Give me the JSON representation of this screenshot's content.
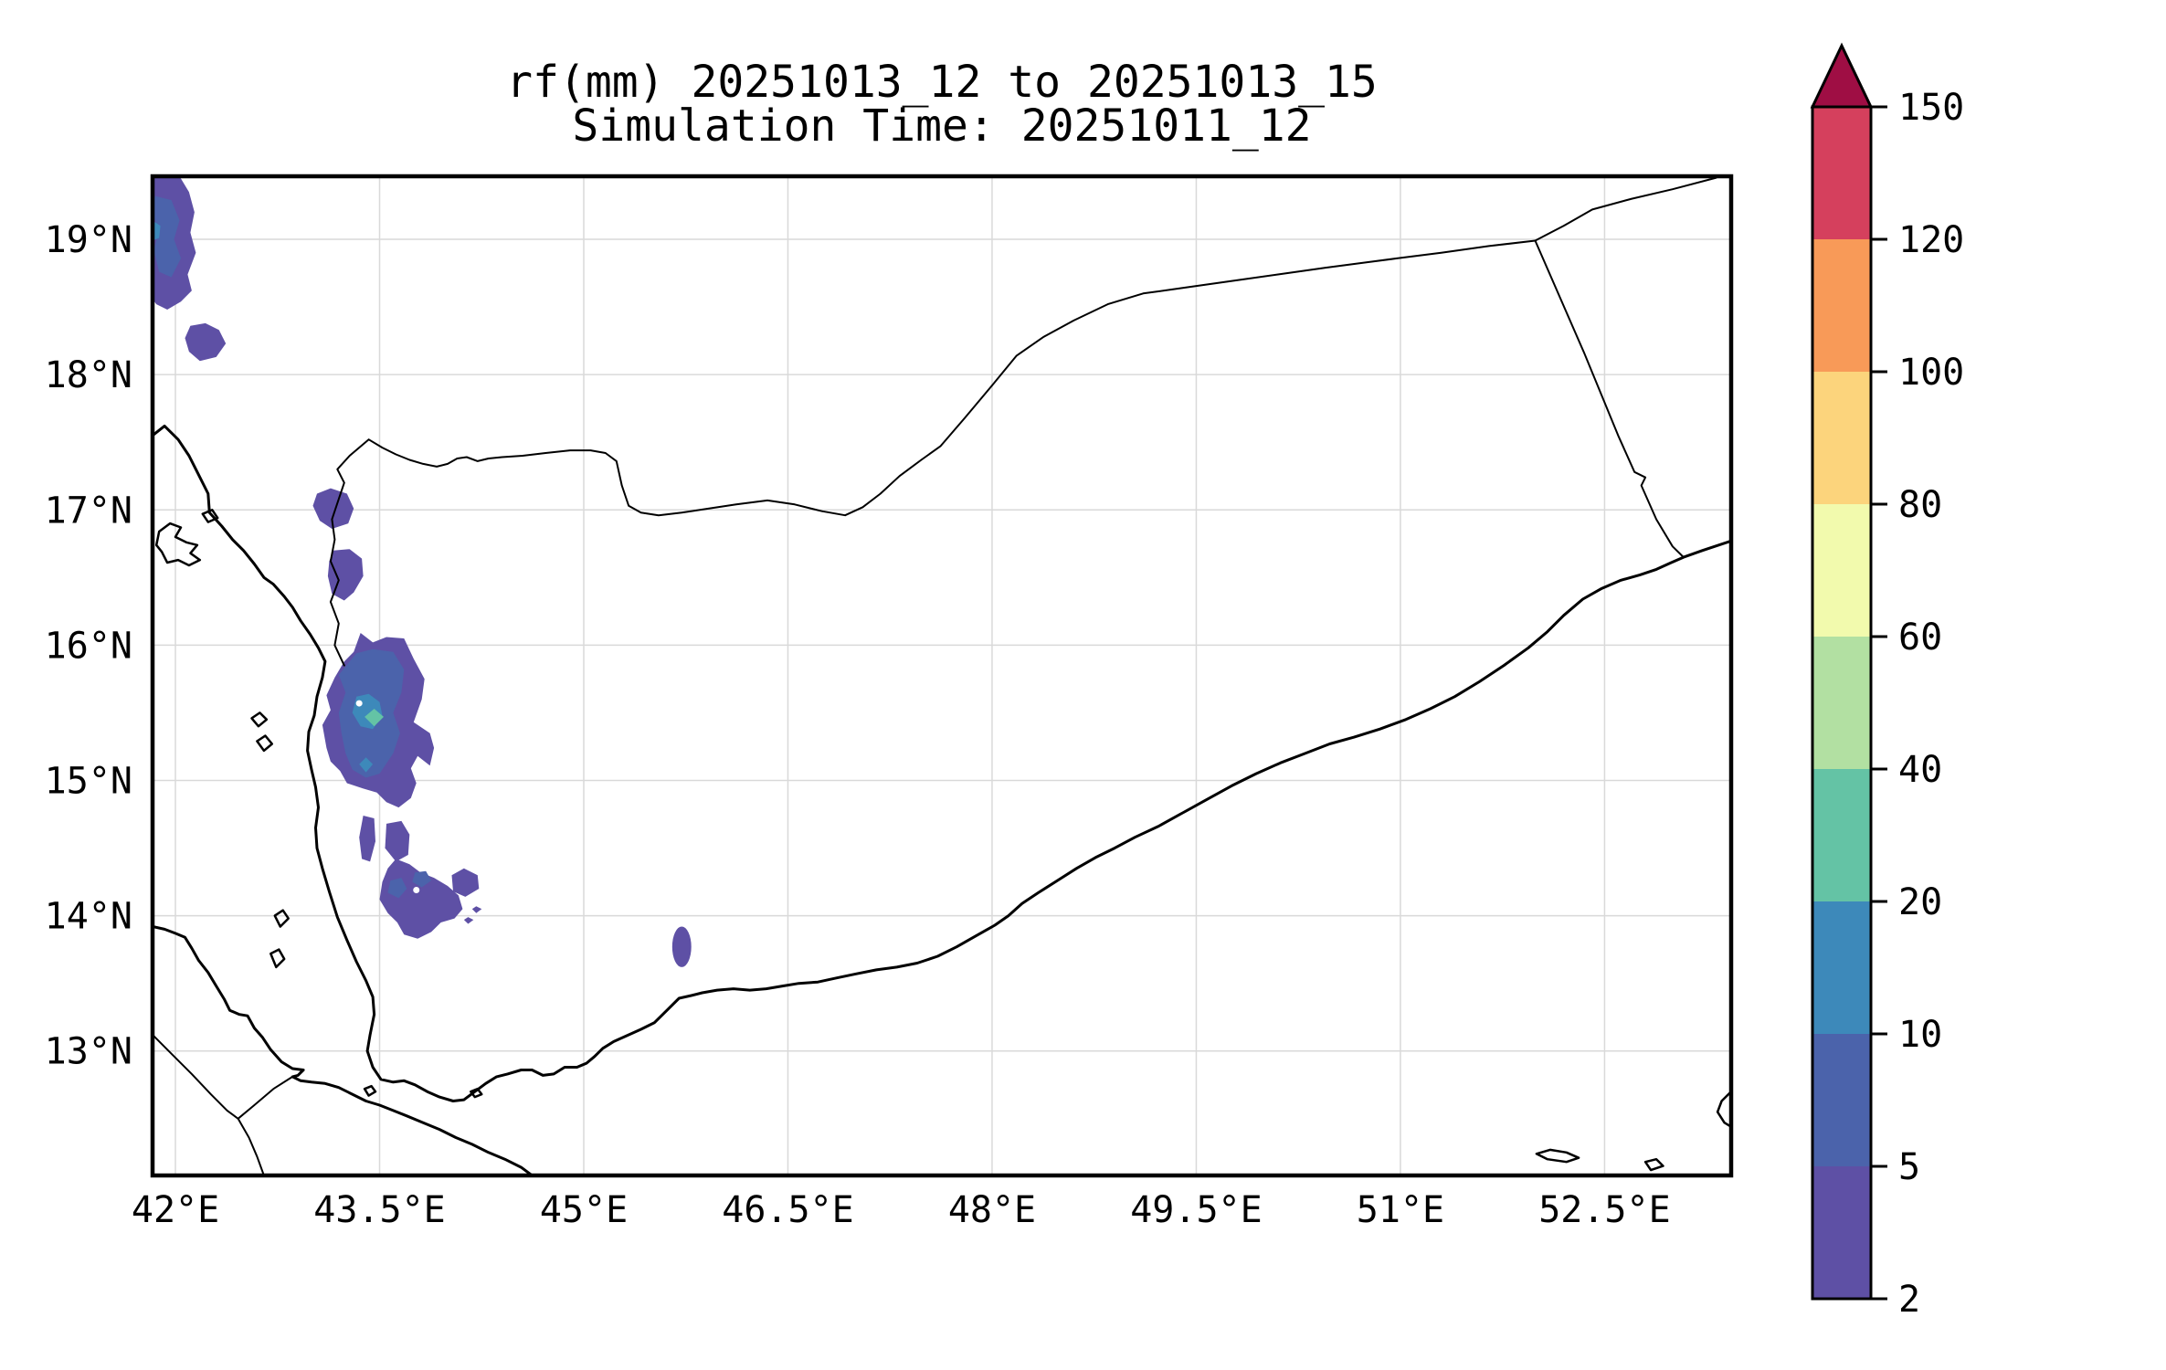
{
  "title": {
    "line1": "rf(mm) 20251013_12 to 20251013_15",
    "line2": "Simulation Time: 20251011_12"
  },
  "chart_data": {
    "type": "heatmap",
    "subtype": "filled-contour-precipitation-map",
    "variable": "rf(mm)",
    "accumulation_period": "20251013_12 to 20251013_15",
    "simulation_time": "20251011_12",
    "region": "Yemen / southern Arabian Peninsula",
    "grid": true,
    "map_extent": {
      "lon_min": 41.832,
      "lon_max": 53.43,
      "lat_min": 12.08,
      "lat_max": 19.466
    },
    "x_ticks": [
      {
        "lon": 42.0,
        "label": "42°E"
      },
      {
        "lon": 43.5,
        "label": "43.5°E"
      },
      {
        "lon": 45.0,
        "label": "45°E"
      },
      {
        "lon": 46.5,
        "label": "46.5°E"
      },
      {
        "lon": 48.0,
        "label": "48°E"
      },
      {
        "lon": 49.5,
        "label": "49.5°E"
      },
      {
        "lon": 51.0,
        "label": "51°E"
      },
      {
        "lon": 52.5,
        "label": "52.5°E"
      }
    ],
    "y_ticks": [
      {
        "lat": 19.0,
        "label": "19°N"
      },
      {
        "lat": 18.0,
        "label": "18°N"
      },
      {
        "lat": 17.0,
        "label": "17°N"
      },
      {
        "lat": 16.0,
        "label": "16°N"
      },
      {
        "lat": 15.0,
        "label": "15°N"
      },
      {
        "lat": 14.0,
        "label": "14°N"
      },
      {
        "lat": 13.0,
        "label": "13°N"
      }
    ],
    "colorbar": {
      "position": "right",
      "levels": [
        2,
        5,
        10,
        20,
        40,
        60,
        80,
        100,
        120,
        150
      ],
      "tick_labels": [
        "2",
        "5",
        "10",
        "20",
        "40",
        "60",
        "80",
        "100",
        "120",
        "150"
      ],
      "segment_colors": [
        "#5e50a5",
        "#4b63ab",
        "#3d89ba",
        "#64c3a5",
        "#b2e0a2",
        "#f2faad",
        "#fcd47c",
        "#f89a58",
        "#d5405d"
      ],
      "over_arrow_color": "#9f0e44",
      "extend": "max"
    },
    "level_colors": {
      "2-5": "#5e50a5",
      "5-10": "#4b63ab",
      "10-20": "#3d89ba",
      "20-40": "#64c3a5"
    },
    "rain_cells": [
      {
        "name": "nw-corner-outer",
        "level": "2-5",
        "color_index": 0,
        "polygon": [
          [
            41.83,
            19.466
          ],
          [
            42.03,
            19.466
          ],
          [
            42.1,
            19.35
          ],
          [
            42.14,
            19.2
          ],
          [
            42.11,
            19.05
          ],
          [
            42.15,
            18.9
          ],
          [
            42.09,
            18.74
          ],
          [
            42.12,
            18.62
          ],
          [
            42.04,
            18.54
          ],
          [
            41.94,
            18.48
          ],
          [
            41.86,
            18.52
          ],
          [
            41.83,
            18.56
          ]
        ]
      },
      {
        "name": "nw-corner-inner",
        "level": "5-10",
        "color_index": 1,
        "polygon": [
          [
            41.85,
            19.32
          ],
          [
            41.97,
            19.29
          ],
          [
            42.03,
            19.14
          ],
          [
            41.99,
            19.0
          ],
          [
            42.04,
            18.86
          ],
          [
            41.97,
            18.72
          ],
          [
            41.88,
            18.76
          ],
          [
            41.84,
            18.92
          ],
          [
            41.88,
            19.06
          ],
          [
            41.83,
            19.2
          ]
        ]
      },
      {
        "name": "nw-corner-teal-spot",
        "level": "10-20",
        "color_index": 2,
        "polygon": [
          [
            41.83,
            19.14
          ],
          [
            41.89,
            19.1
          ],
          [
            41.88,
            19.01
          ],
          [
            41.83,
            18.99
          ]
        ]
      },
      {
        "name": "blob-18n",
        "level": "2-5",
        "color_index": 0,
        "polygon": [
          [
            42.11,
            18.36
          ],
          [
            42.22,
            18.38
          ],
          [
            42.32,
            18.33
          ],
          [
            42.37,
            18.23
          ],
          [
            42.3,
            18.13
          ],
          [
            42.18,
            18.1
          ],
          [
            42.1,
            18.17
          ],
          [
            42.07,
            18.27
          ]
        ]
      },
      {
        "name": "blob-17n",
        "level": "2-5",
        "color_index": 0,
        "polygon": [
          [
            43.04,
            17.12
          ],
          [
            43.14,
            17.16
          ],
          [
            43.26,
            17.12
          ],
          [
            43.31,
            17.01
          ],
          [
            43.27,
            16.9
          ],
          [
            43.15,
            16.86
          ],
          [
            43.06,
            16.92
          ],
          [
            43.01,
            17.03
          ]
        ]
      },
      {
        "name": "blob-16-5n",
        "level": "2-5",
        "color_index": 0,
        "polygon": [
          [
            43.16,
            16.7
          ],
          [
            43.28,
            16.71
          ],
          [
            43.37,
            16.64
          ],
          [
            43.38,
            16.51
          ],
          [
            43.31,
            16.39
          ],
          [
            43.24,
            16.33
          ],
          [
            43.15,
            16.38
          ],
          [
            43.12,
            16.51
          ],
          [
            43.13,
            16.62
          ]
        ]
      },
      {
        "name": "main-cluster-outer",
        "level": "2-5",
        "color_index": 0,
        "polygon": [
          [
            43.36,
            16.09
          ],
          [
            43.45,
            16.02
          ],
          [
            43.55,
            16.06
          ],
          [
            43.68,
            16.05
          ],
          [
            43.75,
            15.9
          ],
          [
            43.83,
            15.75
          ],
          [
            43.81,
            15.6
          ],
          [
            43.75,
            15.43
          ],
          [
            43.87,
            15.35
          ],
          [
            43.9,
            15.24
          ],
          [
            43.87,
            15.11
          ],
          [
            43.78,
            15.18
          ],
          [
            43.73,
            15.09
          ],
          [
            43.77,
            14.98
          ],
          [
            43.73,
            14.87
          ],
          [
            43.64,
            14.8
          ],
          [
            43.55,
            14.84
          ],
          [
            43.48,
            14.91
          ],
          [
            43.38,
            14.94
          ],
          [
            43.26,
            14.98
          ],
          [
            43.21,
            15.07
          ],
          [
            43.14,
            15.14
          ],
          [
            43.11,
            15.24
          ],
          [
            43.08,
            15.41
          ],
          [
            43.14,
            15.52
          ],
          [
            43.11,
            15.63
          ],
          [
            43.17,
            15.76
          ],
          [
            43.24,
            15.88
          ],
          [
            43.31,
            15.95
          ]
        ]
      },
      {
        "name": "main-cluster-inner",
        "level": "5-10",
        "color_index": 1,
        "polygon": [
          [
            43.33,
            15.94
          ],
          [
            43.45,
            15.97
          ],
          [
            43.6,
            15.95
          ],
          [
            43.68,
            15.82
          ],
          [
            43.66,
            15.65
          ],
          [
            43.6,
            15.5
          ],
          [
            43.65,
            15.35
          ],
          [
            43.6,
            15.2
          ],
          [
            43.5,
            15.05
          ],
          [
            43.4,
            15.02
          ],
          [
            43.3,
            15.08
          ],
          [
            43.25,
            15.2
          ],
          [
            43.22,
            15.35
          ],
          [
            43.2,
            15.5
          ],
          [
            43.25,
            15.65
          ],
          [
            43.2,
            15.78
          ],
          [
            43.28,
            15.88
          ]
        ]
      },
      {
        "name": "main-cluster-teal",
        "level": "10-20",
        "color_index": 2,
        "polygon": [
          [
            43.33,
            15.62
          ],
          [
            43.42,
            15.64
          ],
          [
            43.5,
            15.58
          ],
          [
            43.52,
            15.48
          ],
          [
            43.45,
            15.38
          ],
          [
            43.36,
            15.4
          ],
          [
            43.3,
            15.5
          ]
        ]
      },
      {
        "name": "main-cluster-green-core",
        "level": "20-40",
        "color_index": 3,
        "polygon": [
          [
            43.46,
            15.53
          ],
          [
            43.53,
            15.47
          ],
          [
            43.46,
            15.4
          ],
          [
            43.39,
            15.47
          ]
        ]
      },
      {
        "name": "teal-diamond-south",
        "level": "10-20",
        "color_index": 2,
        "polygon": [
          [
            43.4,
            15.17
          ],
          [
            43.45,
            15.12
          ],
          [
            43.4,
            15.06
          ],
          [
            43.35,
            15.12
          ]
        ]
      },
      {
        "name": "mid-blob-west",
        "level": "2-5",
        "color_index": 0,
        "polygon": [
          [
            43.38,
            14.74
          ],
          [
            43.46,
            14.72
          ],
          [
            43.47,
            14.55
          ],
          [
            43.43,
            14.4
          ],
          [
            43.37,
            14.42
          ],
          [
            43.35,
            14.58
          ]
        ]
      },
      {
        "name": "mid-blob-east",
        "level": "2-5",
        "color_index": 0,
        "polygon": [
          [
            43.55,
            14.68
          ],
          [
            43.66,
            14.7
          ],
          [
            43.72,
            14.6
          ],
          [
            43.71,
            14.45
          ],
          [
            43.62,
            14.4
          ],
          [
            43.54,
            14.5
          ]
        ]
      },
      {
        "name": "lower-cluster-outer",
        "level": "2-5",
        "color_index": 0,
        "polygon": [
          [
            43.62,
            14.42
          ],
          [
            43.72,
            14.38
          ],
          [
            43.8,
            14.32
          ],
          [
            43.9,
            14.28
          ],
          [
            44.0,
            14.22
          ],
          [
            44.08,
            14.15
          ],
          [
            44.11,
            14.05
          ],
          [
            44.05,
            13.98
          ],
          [
            43.95,
            13.95
          ],
          [
            43.88,
            13.88
          ],
          [
            43.78,
            13.83
          ],
          [
            43.68,
            13.86
          ],
          [
            43.63,
            13.95
          ],
          [
            43.56,
            14.02
          ],
          [
            43.5,
            14.12
          ],
          [
            43.52,
            14.25
          ],
          [
            43.56,
            14.35
          ]
        ]
      },
      {
        "name": "lower-cluster-inner-west",
        "level": "5-10",
        "color_index": 1,
        "polygon": [
          [
            43.58,
            14.26
          ],
          [
            43.66,
            14.28
          ],
          [
            43.7,
            14.2
          ],
          [
            43.64,
            14.13
          ],
          [
            43.56,
            14.17
          ]
        ]
      },
      {
        "name": "lower-cluster-inner-east",
        "level": "5-10",
        "color_index": 1,
        "polygon": [
          [
            43.76,
            14.32
          ],
          [
            43.84,
            14.33
          ],
          [
            43.88,
            14.26
          ],
          [
            43.81,
            14.21
          ],
          [
            43.74,
            14.25
          ]
        ]
      },
      {
        "name": "round-blob-44e",
        "level": "2-5",
        "color_index": 0,
        "polygon": [
          [
            44.03,
            14.3
          ],
          [
            44.12,
            14.35
          ],
          [
            44.22,
            14.3
          ],
          [
            44.23,
            14.2
          ],
          [
            44.13,
            14.14
          ],
          [
            44.04,
            14.18
          ]
        ]
      },
      {
        "name": "speck-ne",
        "level": "2-5",
        "color_index": 0,
        "polygon": [
          [
            44.21,
            14.07
          ],
          [
            44.25,
            14.05
          ],
          [
            44.21,
            14.02
          ],
          [
            44.18,
            14.05
          ]
        ]
      },
      {
        "name": "speck-sw",
        "level": "2-5",
        "color_index": 0,
        "polygon": [
          [
            44.15,
            13.99
          ],
          [
            44.19,
            13.97
          ],
          [
            44.15,
            13.94
          ],
          [
            44.12,
            13.97
          ]
        ]
      },
      {
        "name": "ellipse-blob-45-7e",
        "level": "2-5",
        "color_index": 0,
        "ellipse": {
          "lon": 45.72,
          "lat": 13.77,
          "rx_deg": 0.07,
          "ry_deg": 0.15
        }
      }
    ],
    "contour_holes": [
      [
        43.35,
        15.57
      ],
      [
        43.77,
        14.19
      ]
    ]
  },
  "colors": {
    "background": "#ffffff",
    "coastline": "#000000",
    "grid": "#d9d9d9",
    "axes_border": "#000000"
  }
}
